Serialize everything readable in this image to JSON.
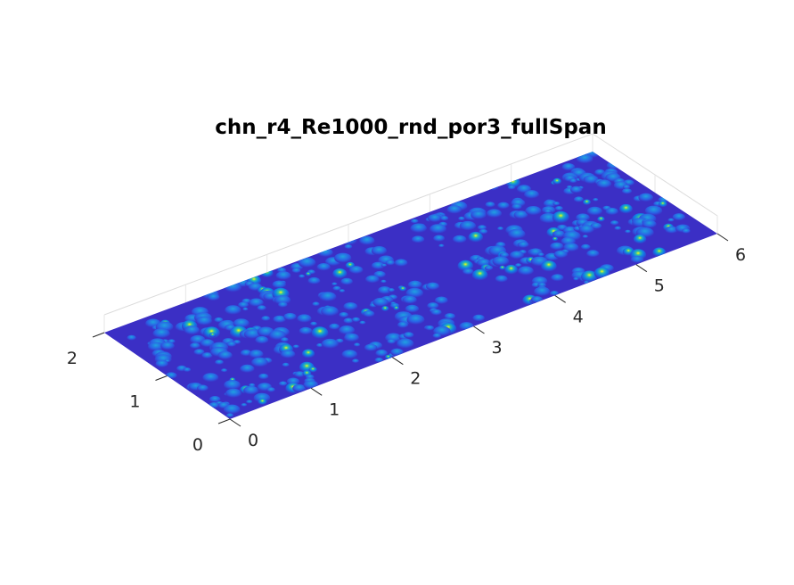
{
  "chart_data": {
    "type": "surface3d",
    "title": "chn_r4_Re1000_rnd_por3_fullSpan",
    "colormap": "parula",
    "base_color": "#3b2fc5",
    "high_color": "#f9fb0e",
    "grid": true,
    "x_axis": {
      "range": [
        0,
        6
      ],
      "ticks": [
        0,
        1,
        2,
        3,
        4,
        5,
        6
      ],
      "tick_labels": [
        "0",
        "1",
        "2",
        "3",
        "4",
        "5",
        "6"
      ]
    },
    "y_axis": {
      "range": [
        0,
        2
      ],
      "ticks": [
        0,
        1,
        2
      ],
      "tick_labels": [
        "0",
        "1",
        "2"
      ]
    },
    "z_axis": {
      "tick_labels": []
    },
    "notes_visible": "Randomly distributed bumps on a flat plane; a bump-free band near x = 3.2-3.5"
  }
}
